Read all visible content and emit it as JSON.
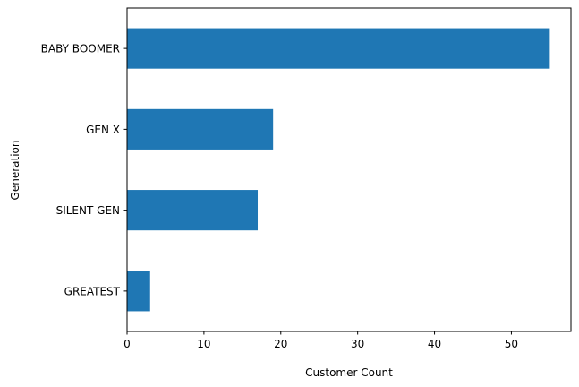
{
  "chart_data": {
    "type": "bar",
    "orientation": "horizontal",
    "categories": [
      "GREATEST",
      "SILENT GEN",
      "GEN X",
      "BABY BOOMER"
    ],
    "values": [
      3,
      17,
      19,
      55
    ],
    "xlabel": "Customer Count",
    "ylabel": "Generation",
    "xlim": [
      0,
      57.75
    ],
    "xticks": [
      0,
      10,
      20,
      30,
      40,
      50
    ],
    "grid": false,
    "legend": "none",
    "bar_color": "#1f77b4"
  }
}
